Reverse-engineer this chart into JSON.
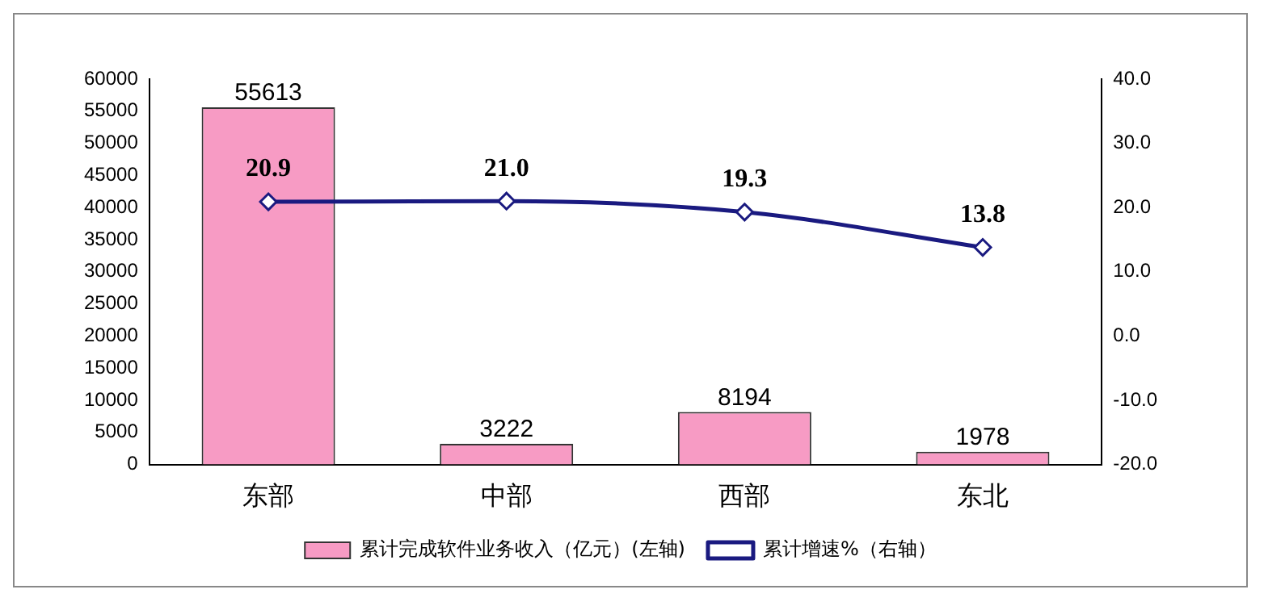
{
  "chart_data": {
    "type": "bar",
    "categories": [
      "东部",
      "中部",
      "西部",
      "东北"
    ],
    "series": [
      {
        "name": "累计完成软件业务收入（亿元）(左轴)",
        "color": "#f79bc4",
        "values": [
          55613,
          3222,
          8194,
          1978
        ]
      },
      {
        "name": "累计增速%（右轴）",
        "type": "line",
        "axis": "y2",
        "color": "#1a1a80",
        "values": [
          20.9,
          21.0,
          19.3,
          13.8
        ],
        "value_labels": [
          "20.9",
          "21.0",
          "19.3",
          "13.8"
        ]
      }
    ],
    "ylim": [
      0,
      60000
    ],
    "yticks": [
      0,
      5000,
      10000,
      15000,
      20000,
      25000,
      30000,
      35000,
      40000,
      45000,
      50000,
      55000,
      60000
    ],
    "y2lim": [
      -20,
      40
    ],
    "y2ticks": [
      {
        "value": -20,
        "label": "-20.0"
      },
      {
        "value": -10,
        "label": "-10.0"
      },
      {
        "value": 0,
        "label": "0.0"
      },
      {
        "value": 10,
        "label": "10.0"
      },
      {
        "value": 20,
        "label": "20.0"
      },
      {
        "value": 30,
        "label": "30.0"
      },
      {
        "value": 40,
        "label": "40.0"
      }
    ],
    "data_labels": true,
    "marker": "diamond",
    "legend": "bottom",
    "grid": false
  }
}
